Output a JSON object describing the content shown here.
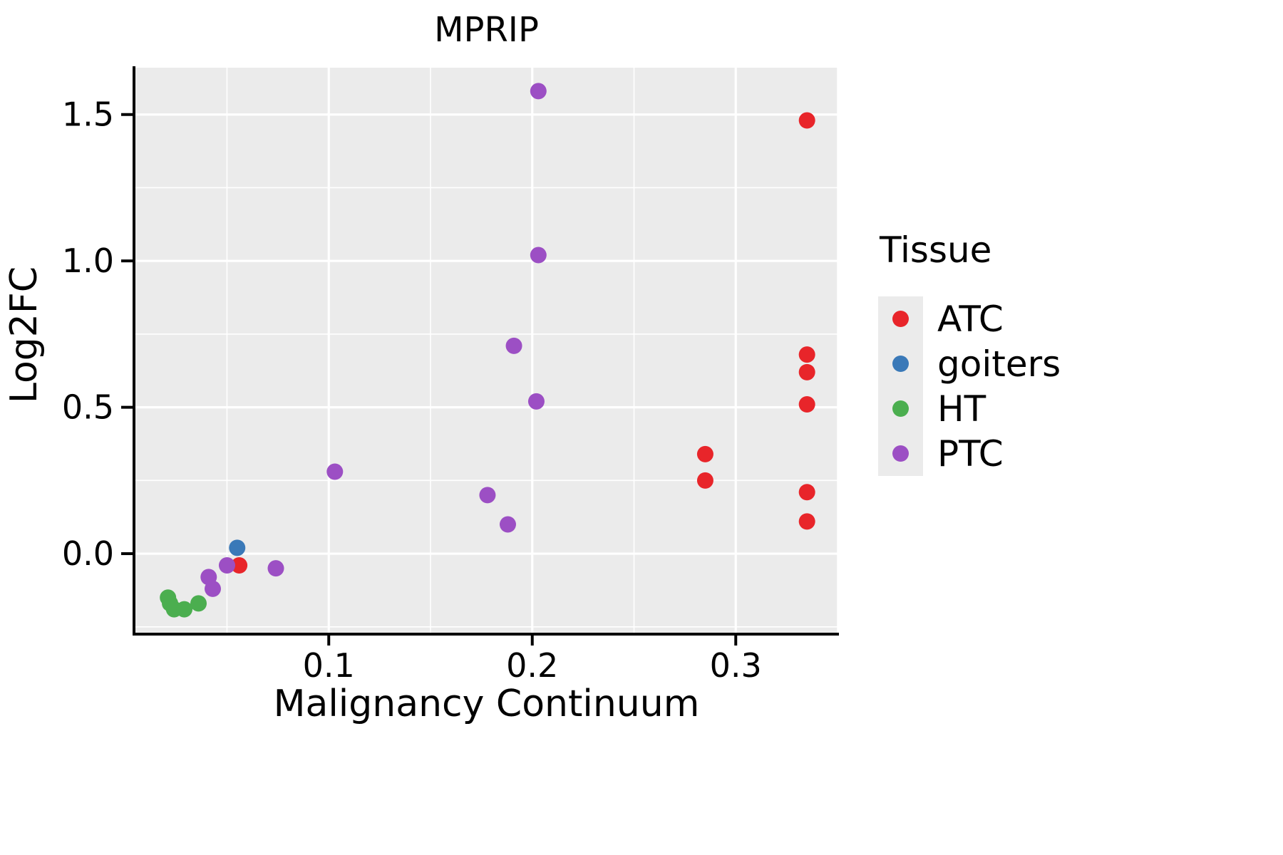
{
  "chart": {
    "title": "MPRIP",
    "xlabel": "Malignancy Continuum",
    "ylabel": "Log2FC",
    "legend_title": "Tissue",
    "panel_bg": "#EBEBEB",
    "grid_color": "#FFFFFF",
    "axis_color": "#000000",
    "legend_key_bg": "#EBEBEB"
  },
  "chart_data": {
    "type": "scatter",
    "title": "MPRIP",
    "xlabel": "Malignancy Continuum",
    "ylabel": "Log2FC",
    "legend_title": "Tissue",
    "legend_position": "right",
    "grid": true,
    "xlim": [
      0.005,
      0.35
    ],
    "ylim": [
      -0.27,
      1.66
    ],
    "x_ticks": [
      0.1,
      0.2,
      0.3
    ],
    "x_tick_labels": [
      "0.1",
      "0.2",
      "0.3"
    ],
    "y_ticks": [
      0.0,
      0.5,
      1.0,
      1.5
    ],
    "y_tick_labels": [
      "0.0",
      "0.5",
      "1.0",
      "1.5"
    ],
    "x_minor_ticks": [
      0.05,
      0.15,
      0.25,
      0.35
    ],
    "y_minor_ticks": [
      -0.25,
      0.25,
      0.75,
      1.25
    ],
    "series": [
      {
        "name": "ATC",
        "color": "#E8252A",
        "points": [
          [
            0.335,
            1.48
          ],
          [
            0.335,
            0.68
          ],
          [
            0.335,
            0.62
          ],
          [
            0.335,
            0.51
          ],
          [
            0.285,
            0.34
          ],
          [
            0.285,
            0.25
          ],
          [
            0.335,
            0.21
          ],
          [
            0.335,
            0.11
          ],
          [
            0.056,
            -0.04
          ]
        ]
      },
      {
        "name": "goiters",
        "color": "#3A79B8",
        "points": [
          [
            0.055,
            0.02
          ]
        ]
      },
      {
        "name": "HT",
        "color": "#4BAE4F",
        "points": [
          [
            0.021,
            -0.15
          ],
          [
            0.022,
            -0.17
          ],
          [
            0.024,
            -0.19
          ],
          [
            0.029,
            -0.19
          ],
          [
            0.036,
            -0.17
          ]
        ]
      },
      {
        "name": "PTC",
        "color": "#9C4FC4",
        "points": [
          [
            0.203,
            1.58
          ],
          [
            0.203,
            1.02
          ],
          [
            0.191,
            0.71
          ],
          [
            0.202,
            0.52
          ],
          [
            0.103,
            0.28
          ],
          [
            0.178,
            0.2
          ],
          [
            0.188,
            0.1
          ],
          [
            0.074,
            -0.05
          ],
          [
            0.05,
            -0.04
          ],
          [
            0.041,
            -0.08
          ],
          [
            0.043,
            -0.12
          ]
        ]
      }
    ]
  }
}
